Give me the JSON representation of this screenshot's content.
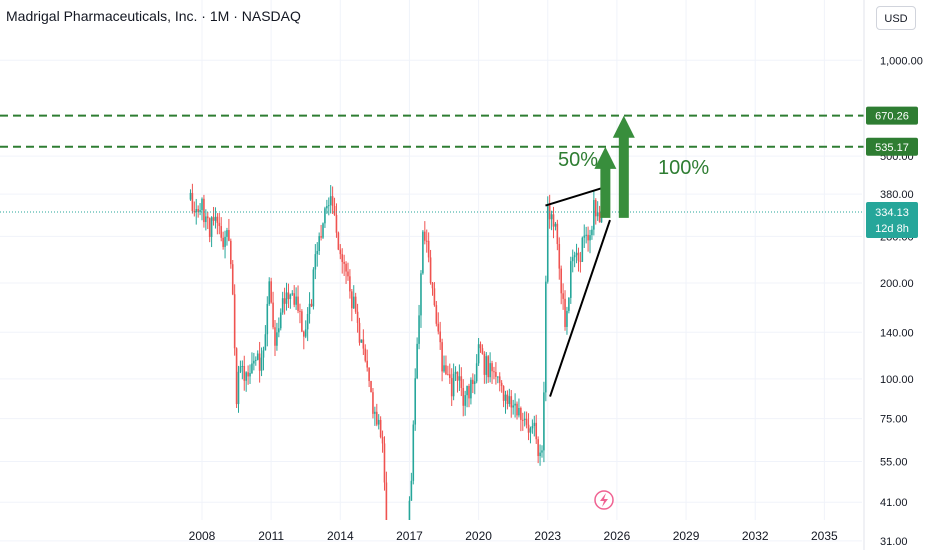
{
  "header": {
    "title": "Madrigal Pharmaceuticals, Inc. · 1M · NASDAQ",
    "currency": "USD"
  },
  "colors": {
    "up": "#26a69a",
    "down": "#ef5350",
    "level_line": "#2e7d32",
    "level_tag": "#2e7d32",
    "current_tag": "#26a69a",
    "arrow": "#388e3c",
    "annotation_text": "#2e7d32",
    "trendline": "#000000",
    "grid": "#f0f3fa"
  },
  "chart_data": {
    "type": "candlestick",
    "symbol": "MDGL",
    "interval": "1M",
    "y_scale": "log",
    "y_ticks": [
      "1,000.00",
      "500.00",
      "380.00",
      "280.00",
      "200.00",
      "140.00",
      "100.00",
      "75.00",
      "55.00",
      "41.00",
      "31.00"
    ],
    "x_ticks": [
      "2008",
      "2011",
      "2014",
      "2017",
      "2020",
      "2023",
      "2026",
      "2029",
      "2032",
      "2035"
    ],
    "levels": [
      {
        "label": "670.26",
        "value": 670.26
      },
      {
        "label": "535.17",
        "value": 535.17
      }
    ],
    "current_price": {
      "label": "334.13",
      "value": 334.13,
      "countdown": "12d 8h"
    },
    "annotations": [
      {
        "text": "50%"
      },
      {
        "text": "100%"
      }
    ],
    "trendlines": [
      {
        "name": "upper",
        "from": {
          "year": 2022.9,
          "price": 350
        },
        "to": {
          "year": 2025.5,
          "price": 400
        }
      },
      {
        "name": "lower",
        "from": {
          "year": 2023.1,
          "price": 88
        },
        "to": {
          "year": 2025.7,
          "price": 315
        }
      }
    ],
    "target_arrows": [
      {
        "year": 2025.5,
        "from": 320,
        "to": 535
      },
      {
        "year": 2026.3,
        "from": 320,
        "to": 670
      }
    ],
    "price_path": [
      [
        2007.5,
        360
      ],
      [
        2007.8,
        330
      ],
      [
        2008.0,
        350
      ],
      [
        2008.3,
        300
      ],
      [
        2008.6,
        310
      ],
      [
        2008.9,
        270
      ],
      [
        2009.1,
        300
      ],
      [
        2009.3,
        200
      ],
      [
        2009.5,
        90
      ],
      [
        2009.7,
        110
      ],
      [
        2010.0,
        100
      ],
      [
        2010.3,
        120
      ],
      [
        2010.6,
        110
      ],
      [
        2010.9,
        200
      ],
      [
        2011.2,
        130
      ],
      [
        2011.5,
        170
      ],
      [
        2011.8,
        190
      ],
      [
        2012.1,
        180
      ],
      [
        2012.4,
        140
      ],
      [
        2012.7,
        170
      ],
      [
        2013.0,
        260
      ],
      [
        2013.3,
        330
      ],
      [
        2013.6,
        380
      ],
      [
        2013.9,
        280
      ],
      [
        2014.2,
        220
      ],
      [
        2014.5,
        180
      ],
      [
        2014.8,
        140
      ],
      [
        2015.1,
        110
      ],
      [
        2015.4,
        85
      ],
      [
        2015.7,
        70
      ],
      [
        2015.9,
        55
      ],
      [
        2016.0,
        30
      ],
      [
        2016.9,
        30
      ],
      [
        2017.1,
        50
      ],
      [
        2017.3,
        120
      ],
      [
        2017.6,
        300
      ],
      [
        2017.9,
        220
      ],
      [
        2018.2,
        140
      ],
      [
        2018.5,
        105
      ],
      [
        2018.8,
        95
      ],
      [
        2019.1,
        100
      ],
      [
        2019.4,
        85
      ],
      [
        2019.7,
        95
      ],
      [
        2020.0,
        120
      ],
      [
        2020.3,
        110
      ],
      [
        2020.6,
        105
      ],
      [
        2020.9,
        95
      ],
      [
        2021.2,
        90
      ],
      [
        2021.5,
        85
      ],
      [
        2021.8,
        80
      ],
      [
        2022.0,
        70
      ],
      [
        2022.2,
        65
      ],
      [
        2022.4,
        70
      ],
      [
        2022.6,
        60
      ],
      [
        2022.8,
        65
      ],
      [
        2022.9,
        200
      ],
      [
        2023.0,
        330
      ],
      [
        2023.2,
        320
      ],
      [
        2023.4,
        290
      ],
      [
        2023.6,
        180
      ],
      [
        2023.8,
        140
      ],
      [
        2024.0,
        230
      ],
      [
        2024.2,
        260
      ],
      [
        2024.4,
        240
      ],
      [
        2024.6,
        290
      ],
      [
        2024.8,
        280
      ],
      [
        2025.0,
        340
      ],
      [
        2025.2,
        330
      ],
      [
        2025.4,
        334
      ]
    ]
  }
}
